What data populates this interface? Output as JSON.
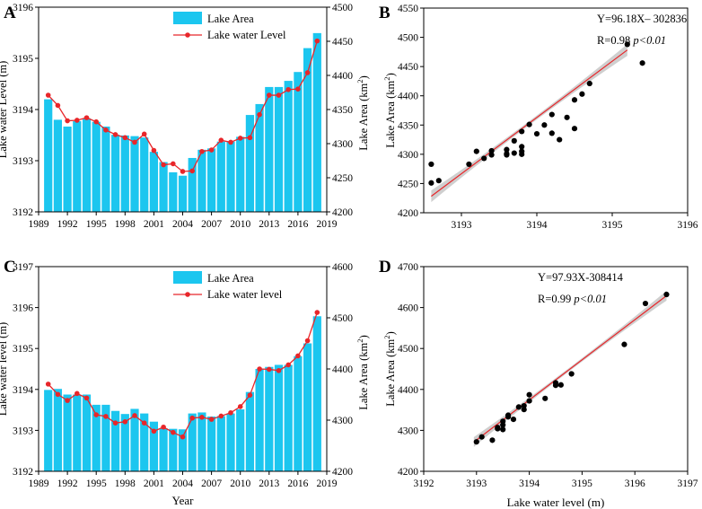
{
  "colors": {
    "bar": "#1cc6ef",
    "line": "#e8262a",
    "dot": "#000000",
    "fit": "#e8262a",
    "band": "#c7c7c7"
  },
  "chart_data": [
    {
      "id": "A",
      "panel_label": "A",
      "type": "bar+line",
      "categories": [
        1990,
        1991,
        1992,
        1993,
        1994,
        1995,
        1996,
        1997,
        1998,
        1999,
        2000,
        2001,
        2002,
        2003,
        2004,
        2005,
        2006,
        2007,
        2008,
        2009,
        2010,
        2011,
        2012,
        2013,
        2014,
        2015,
        2016,
        2017,
        2018
      ],
      "area_values": [
        4365,
        4335,
        4325,
        4333,
        4337,
        4332,
        4325,
        4313,
        4312,
        4311,
        4309,
        4288,
        4273,
        4258,
        4253,
        4279,
        4291,
        4293,
        4303,
        4303,
        4310,
        4342,
        4358,
        4383,
        4383,
        4392,
        4405,
        4440,
        4462
      ],
      "level_values": [
        3194.28,
        3194.08,
        3193.78,
        3193.79,
        3193.84,
        3193.76,
        3193.6,
        3193.51,
        3193.45,
        3193.36,
        3193.52,
        3193.2,
        3192.92,
        3192.94,
        3192.79,
        3192.8,
        3193.18,
        3193.21,
        3193.4,
        3193.36,
        3193.44,
        3193.45,
        3193.9,
        3194.28,
        3194.28,
        3194.39,
        3194.4,
        3194.72,
        3195.34
      ],
      "xticks": [
        1989,
        1992,
        1995,
        1998,
        2001,
        2004,
        2007,
        2010,
        2013,
        2016,
        2019
      ],
      "xlim": [
        1989,
        2019
      ],
      "ylim_left": [
        3192,
        3196
      ],
      "yticks_left": [
        3192,
        3193,
        3194,
        3195,
        3196
      ],
      "ylim_right": [
        4200,
        4500
      ],
      "yticks_right": [
        4200,
        4250,
        4300,
        4350,
        4400,
        4450,
        4500
      ],
      "ylabel_left": "Lake water Level (m)",
      "ylabel_right_main": "Lake Area (km",
      "ylabel_right_sup": "2",
      "ylabel_right_end": ")",
      "xlabel": "",
      "legend": [
        "Lake Area",
        "Lake water Level"
      ],
      "legend_position": "top-center"
    },
    {
      "id": "B",
      "panel_label": "B",
      "type": "scatter",
      "x": [
        3192.6,
        3192.6,
        3192.7,
        3193.1,
        3193.2,
        3193.3,
        3193.4,
        3193.4,
        3193.6,
        3193.6,
        3193.6,
        3193.7,
        3193.8,
        3193.7,
        3193.8,
        3193.8,
        3193.8,
        3194.0,
        3194.2,
        3194.3,
        3194.5,
        3194.4,
        3194.1,
        3193.9,
        3194.2,
        3194.5,
        3194.6,
        3194.7,
        3195.4,
        3195.2
      ],
      "y": [
        4251,
        4283,
        4255,
        4283,
        4305,
        4293,
        4299,
        4306,
        4299,
        4301,
        4308,
        4302,
        4305,
        4323,
        4339,
        4313,
        4300,
        4335,
        4336,
        4325,
        4344,
        4363,
        4350,
        4351,
        4368,
        4393,
        4403,
        4421,
        4456,
        4488
      ],
      "fit": {
        "slope": 96.18,
        "intercept": -302836,
        "x_range": [
          3192.6,
          3195.2
        ],
        "band": 10
      },
      "xlim": [
        3192.5,
        3196
      ],
      "xticks": [
        3193,
        3194,
        3195,
        3196
      ],
      "xtick_labels": [
        "3193",
        "3194",
        "3195",
        "3196"
      ],
      "ylim": [
        4200,
        4550
      ],
      "yticks": [
        4200,
        4250,
        4300,
        4350,
        4400,
        4450,
        4500,
        4550
      ],
      "xlabel": "",
      "ylabel_main": "Lake Area (km",
      "ylabel_sup": "2",
      "ylabel_end": ")",
      "equation": "Y=96.18X– 302836",
      "r_text": "R=0.98",
      "p_text": "p<0.01"
    },
    {
      "id": "C",
      "panel_label": "C",
      "type": "bar+line",
      "categories": [
        1990,
        1991,
        1992,
        1993,
        1994,
        1995,
        1996,
        1997,
        1998,
        1999,
        2000,
        2001,
        2002,
        2003,
        2004,
        2005,
        2006,
        2007,
        2008,
        2009,
        2010,
        2011,
        2012,
        2013,
        2014,
        2015,
        2016,
        2017,
        2018
      ],
      "area_values": [
        4359,
        4361,
        4350,
        4350,
        4350,
        4330,
        4330,
        4318,
        4312,
        4322,
        4313,
        4297,
        4284,
        4283,
        4282,
        4313,
        4315,
        4307,
        4308,
        4313,
        4321,
        4355,
        4400,
        4404,
        4408,
        4408,
        4425,
        4450,
        4503
      ],
      "level_values": [
        3194.13,
        3193.88,
        3193.73,
        3193.9,
        3193.79,
        3193.38,
        3193.34,
        3193.18,
        3193.21,
        3193.36,
        3193.18,
        3192.98,
        3193.08,
        3192.95,
        3192.84,
        3193.3,
        3193.32,
        3193.27,
        3193.35,
        3193.43,
        3193.58,
        3193.86,
        3194.5,
        3194.49,
        3194.46,
        3194.6,
        3194.82,
        3195.19,
        3195.88
      ],
      "xticks": [
        1989,
        1992,
        1995,
        1998,
        2001,
        2004,
        2007,
        2010,
        2013,
        2016,
        2019
      ],
      "xlim": [
        1989,
        2019
      ],
      "ylim_left": [
        3192,
        3197
      ],
      "yticks_left": [
        3192,
        3193,
        3194,
        3195,
        3196,
        3197
      ],
      "ylim_right": [
        4200,
        4600
      ],
      "yticks_right": [
        4200,
        4300,
        4400,
        4500,
        4600
      ],
      "ylabel_left": "Lake water level (m)",
      "ylabel_right_main": "Lake Area (km",
      "ylabel_right_sup": "2",
      "ylabel_right_end": ")",
      "xlabel": "Year",
      "legend": [
        "Lake Area",
        "Lake water level"
      ],
      "legend_position": "top-center"
    },
    {
      "id": "D",
      "panel_label": "D",
      "type": "scatter",
      "x": [
        3193.0,
        3193.1,
        3193.3,
        3193.4,
        3193.5,
        3193.4,
        3193.6,
        3193.5,
        3193.7,
        3193.9,
        3193.8,
        3193.9,
        3194.0,
        3194.0,
        3194.3,
        3194.5,
        3194.5,
        3194.6,
        3194.8,
        3195.8,
        3196.2,
        3196.6,
        3193.6,
        3193.5
      ],
      "y": [
        4272,
        4284,
        4276,
        4307,
        4322,
        4304,
        4333,
        4313,
        4327,
        4351,
        4357,
        4360,
        4372,
        4387,
        4378,
        4410,
        4416,
        4411,
        4438,
        4510,
        4610,
        4632,
        4337,
        4302
      ],
      "fit": {
        "slope": 97.93,
        "intercept": -308414,
        "x_range": [
          3192.95,
          3196.6
        ],
        "band": 12
      },
      "xlim": [
        3192,
        3197
      ],
      "xticks": [
        3192,
        3193,
        3194,
        3195,
        3196,
        3197
      ],
      "xtick_labels": [
        "3192",
        "3193",
        "3194",
        "3195",
        "3196",
        "3197"
      ],
      "ylim": [
        4200,
        4700
      ],
      "yticks": [
        4200,
        4300,
        4400,
        4500,
        4600,
        4700
      ],
      "xlabel": "Lake water level (m)",
      "ylabel_main": "Lake Area (km",
      "ylabel_sup": "2",
      "ylabel_end": ")",
      "equation": "Y=97.93X-308414",
      "r_text": "R=0.99",
      "p_text": "p<0.01"
    }
  ]
}
